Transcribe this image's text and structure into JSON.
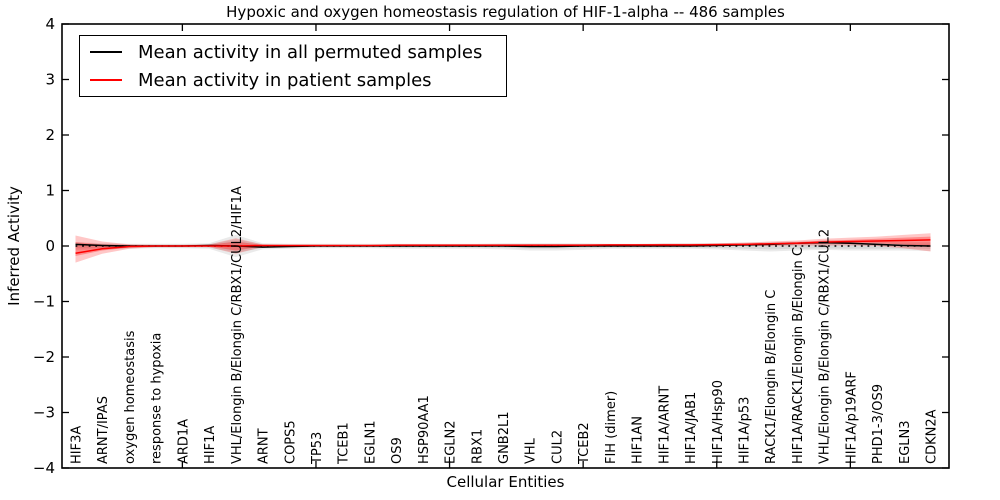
{
  "title": "Hypoxic and oxygen homeostasis regulation of HIF-1-alpha -- 486 samples",
  "axes": {
    "xlabel": "Cellular Entities",
    "ylabel": "Inferred Activity",
    "ylim": [
      -4,
      4
    ],
    "ytick_values": [
      4,
      3,
      2,
      1,
      0,
      -1,
      -2,
      -3,
      -4
    ],
    "ytick_labels": [
      "4",
      "3",
      "2",
      "1",
      "0",
      "−1",
      "−2",
      "−3",
      "−4"
    ],
    "x_tick_indices": [
      4,
      9,
      14,
      19,
      24,
      29
    ]
  },
  "legend": {
    "items": [
      {
        "label": "Mean activity in all permuted samples",
        "color": "#000000"
      },
      {
        "label": "Mean activity in patient samples",
        "color": "#ff0000"
      }
    ]
  },
  "chart_data": {
    "type": "line",
    "title": "Hypoxic and oxygen homeostasis regulation of HIF-1-alpha -- 486 samples",
    "xlabel": "Cellular Entities",
    "ylabel": "Inferred Activity",
    "ylim": [
      -4,
      4
    ],
    "grid": false,
    "legend_position": "upper left",
    "zero_line": {
      "value": 0,
      "style": "dotted",
      "color": "#000000"
    },
    "categories": [
      "HIF3A",
      "ARNT/IPAS",
      "oxygen homeostasis",
      "response to hypoxia",
      "ARD1A",
      "HIF1A",
      "VHL/Elongin B/Elongin C/RBX1/CUL2/HIF1A",
      "ARNT",
      "COPS5",
      "TP53",
      "TCEB1",
      "EGLN1",
      "OS9",
      "HSP90AA1",
      "EGLN2",
      "RBX1",
      "GNB2L1",
      "VHL",
      "CUL2",
      "TCEB2",
      "FIH (dimer)",
      "HIF1AN",
      "HIF1A/ARNT",
      "HIF1A/JAB1",
      "HIF1A/Hsp90",
      "HIF1A/p53",
      "RACK1/Elongin B/Elongin C",
      "HIF1A/RACK1/Elongin B/Elongin C",
      "VHL/Elongin B/Elongin C/RBX1/CUL2",
      "HIF1A/p19ARF",
      "PHD1-3/OS9",
      "EGLN3",
      "CDKN2A"
    ],
    "series": [
      {
        "name": "Mean activity in all permuted samples",
        "color": "#000000",
        "values": [
          0.03,
          0.01,
          0.0,
          0.0,
          0.0,
          0.01,
          0.0,
          -0.02,
          -0.01,
          0.0,
          0.0,
          0.0,
          0.0,
          0.0,
          0.0,
          0.0,
          0.0,
          -0.01,
          -0.01,
          0.0,
          0.0,
          0.0,
          0.0,
          0.0,
          0.01,
          0.02,
          0.03,
          0.05,
          0.06,
          0.05,
          0.03,
          0.01,
          0.0
        ]
      },
      {
        "name": "Mean activity in patient samples",
        "color": "#ff0000",
        "values": [
          -0.13,
          -0.05,
          -0.01,
          0.0,
          0.0,
          0.0,
          0.0,
          0.01,
          0.01,
          0.01,
          0.01,
          0.01,
          0.015,
          0.015,
          0.015,
          0.015,
          0.015,
          0.015,
          0.015,
          0.015,
          0.02,
          0.02,
          0.02,
          0.02,
          0.025,
          0.03,
          0.04,
          0.05,
          0.07,
          0.08,
          0.09,
          0.1,
          0.11
        ]
      }
    ],
    "bands": [
      {
        "name": "permuted-range-outer",
        "color": "#888888",
        "opacity": 0.18,
        "upper": [
          0.07,
          0.05,
          0.04,
          0.04,
          0.04,
          0.05,
          0.2,
          0.05,
          0.04,
          0.04,
          0.04,
          0.04,
          0.04,
          0.04,
          0.04,
          0.04,
          0.05,
          0.05,
          0.05,
          0.05,
          0.04,
          0.04,
          0.05,
          0.05,
          0.05,
          0.06,
          0.07,
          0.08,
          0.09,
          0.09,
          0.08,
          0.07,
          0.07
        ],
        "lower": [
          -0.07,
          -0.06,
          -0.05,
          -0.04,
          -0.04,
          -0.05,
          -0.2,
          -0.06,
          -0.05,
          -0.04,
          -0.04,
          -0.04,
          -0.05,
          -0.05,
          -0.05,
          -0.05,
          -0.06,
          -0.08,
          -0.08,
          -0.07,
          -0.05,
          -0.05,
          -0.05,
          -0.05,
          -0.06,
          -0.08,
          -0.1,
          -0.08,
          -0.07,
          -0.08,
          -0.08,
          -0.08,
          -0.09
        ]
      },
      {
        "name": "permuted-range-inner",
        "color": "#888888",
        "opacity": 0.18,
        "upper": [
          0.04,
          0.03,
          0.025,
          0.025,
          0.025,
          0.03,
          0.12,
          0.03,
          0.025,
          0.025,
          0.025,
          0.025,
          0.025,
          0.025,
          0.025,
          0.025,
          0.03,
          0.03,
          0.03,
          0.03,
          0.025,
          0.025,
          0.03,
          0.03,
          0.03,
          0.035,
          0.045,
          0.05,
          0.055,
          0.055,
          0.05,
          0.045,
          0.04
        ],
        "lower": [
          -0.04,
          -0.035,
          -0.03,
          -0.025,
          -0.025,
          -0.03,
          -0.12,
          -0.035,
          -0.03,
          -0.025,
          -0.025,
          -0.025,
          -0.03,
          -0.03,
          -0.03,
          -0.03,
          -0.035,
          -0.05,
          -0.05,
          -0.04,
          -0.03,
          -0.03,
          -0.03,
          -0.03,
          -0.035,
          -0.05,
          -0.06,
          -0.05,
          -0.045,
          -0.05,
          -0.05,
          -0.05,
          -0.055
        ]
      },
      {
        "name": "patient-range-outer",
        "color": "#ff0000",
        "opacity": 0.22,
        "upper": [
          0.19,
          0.08,
          0.03,
          0.02,
          0.02,
          0.03,
          0.14,
          0.03,
          0.02,
          0.02,
          0.02,
          0.02,
          0.02,
          0.02,
          0.02,
          0.02,
          0.02,
          0.03,
          0.03,
          0.03,
          0.03,
          0.03,
          0.04,
          0.04,
          0.05,
          0.06,
          0.08,
          0.1,
          0.13,
          0.15,
          0.17,
          0.2,
          0.23
        ],
        "lower": [
          -0.3,
          -0.14,
          -0.05,
          -0.02,
          -0.02,
          -0.02,
          -0.14,
          -0.02,
          -0.01,
          -0.01,
          -0.01,
          -0.01,
          -0.01,
          -0.01,
          -0.01,
          -0.01,
          -0.01,
          -0.01,
          -0.01,
          -0.01,
          -0.01,
          -0.01,
          -0.005,
          -0.005,
          0.0,
          0.0,
          0.0,
          0.01,
          0.01,
          0.01,
          0.0,
          -0.04,
          -0.1
        ]
      },
      {
        "name": "patient-range-inner",
        "color": "#ff0000",
        "opacity": 0.3,
        "upper": [
          0.07,
          0.03,
          0.02,
          0.01,
          0.01,
          0.02,
          0.08,
          0.02,
          0.015,
          0.015,
          0.015,
          0.015,
          0.015,
          0.015,
          0.015,
          0.015,
          0.015,
          0.02,
          0.02,
          0.02,
          0.02,
          0.02,
          0.03,
          0.03,
          0.035,
          0.04,
          0.055,
          0.07,
          0.1,
          0.11,
          0.13,
          0.15,
          0.17
        ],
        "lower": [
          -0.18,
          -0.08,
          -0.03,
          -0.01,
          -0.01,
          -0.01,
          -0.08,
          -0.01,
          0.0,
          0.0,
          0.0,
          0.0,
          0.0,
          0.0,
          0.0,
          0.0,
          0.0,
          0.0,
          0.0,
          0.0,
          0.0,
          0.0,
          0.005,
          0.005,
          0.01,
          0.015,
          0.02,
          0.03,
          0.04,
          0.05,
          0.05,
          0.03,
          -0.02
        ]
      }
    ]
  }
}
